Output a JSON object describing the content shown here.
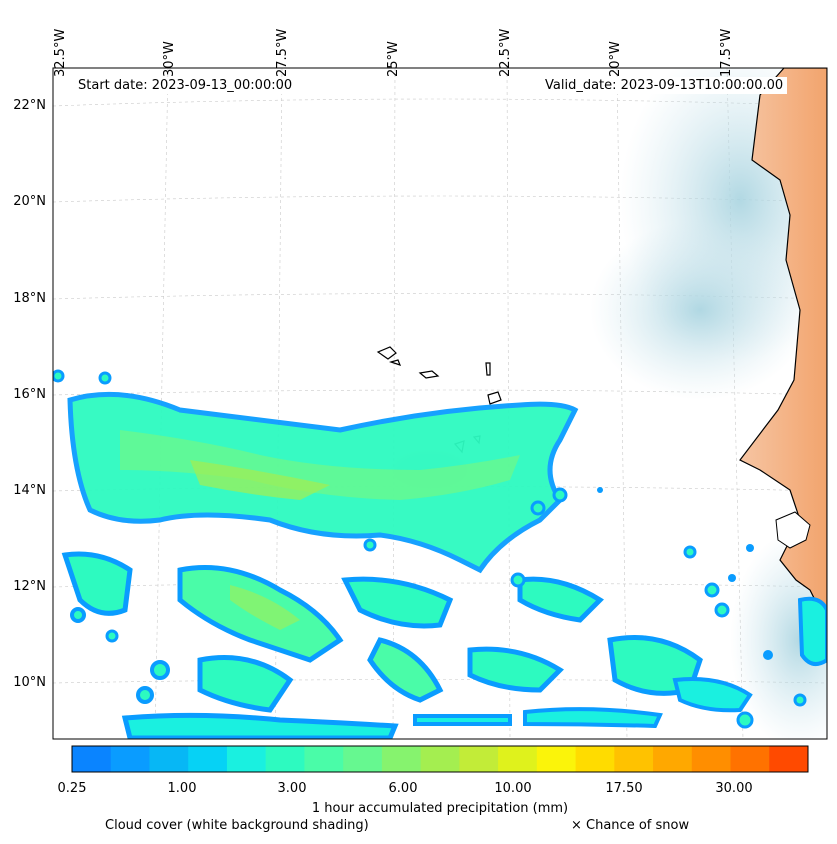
{
  "map": {
    "start_date": "Start date: 2023-09-13_00:00:00",
    "valid_date": "Valid_date: 2023-09-13T10:00:00.00",
    "longitude_labels": [
      "32.5°W",
      "30°W",
      "27.5°W",
      "25°W",
      "22.5°W",
      "20°W",
      "17.5°W"
    ],
    "latitude_labels": [
      "22°N",
      "20°N",
      "18°N",
      "16°N",
      "14°N",
      "12°N",
      "10°N"
    ]
  },
  "colorbar": {
    "title": "1 hour accumulated precipitation (mm)",
    "tick_labels": [
      "0.25",
      "1.00",
      "3.00",
      "6.00",
      "10.00",
      "17.50",
      "30.00"
    ],
    "colors": [
      "#0a84ff",
      "#0a9cff",
      "#07b7f5",
      "#06d2f5",
      "#1af0e0",
      "#2dfac0",
      "#4afca8",
      "#66f890",
      "#86f36e",
      "#a4ee50",
      "#c2ec38",
      "#dff21c",
      "#fbf40a",
      "#ffdc00",
      "#ffc200",
      "#ffa800",
      "#ff8e00",
      "#ff7200",
      "#ff4a00"
    ]
  },
  "legend": {
    "cloud_note": "Cloud cover (white background shading)",
    "snow_note": "× Chance of snow"
  }
}
